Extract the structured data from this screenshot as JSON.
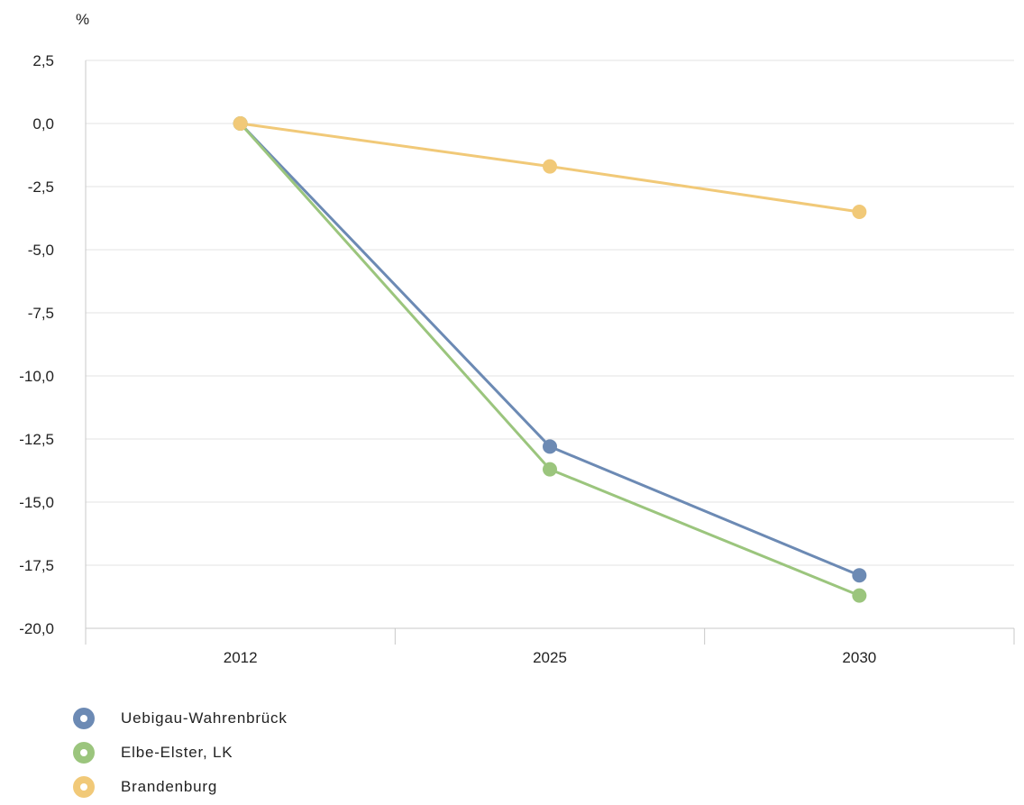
{
  "chart_data": {
    "type": "line",
    "unit_label": "%",
    "categories": [
      "2012",
      "2025",
      "2030"
    ],
    "ylim": [
      -20,
      2.5
    ],
    "yticks": [
      2.5,
      0,
      -2.5,
      -5,
      -7.5,
      -10,
      -12.5,
      -15,
      -17.5,
      -20
    ],
    "ytick_labels": [
      "2,5",
      "0,0",
      "-2,5",
      "-5,0",
      "-7,5",
      "-10,0",
      "-12,5",
      "-15,0",
      "-17,5",
      "-20,0"
    ],
    "grid": true,
    "legend_position": "bottom-left",
    "series": [
      {
        "name": "Uebigau-Wahrenbrück",
        "color": "#6c8ab4",
        "values": [
          0,
          -12.8,
          -17.9
        ]
      },
      {
        "name": "Elbe-Elster, LK",
        "color": "#9bc57d",
        "values": [
          0,
          -13.7,
          -18.7
        ]
      },
      {
        "name": "Brandenburg",
        "color": "#f1c978",
        "values": [
          0,
          -1.7,
          -3.5
        ]
      }
    ]
  }
}
